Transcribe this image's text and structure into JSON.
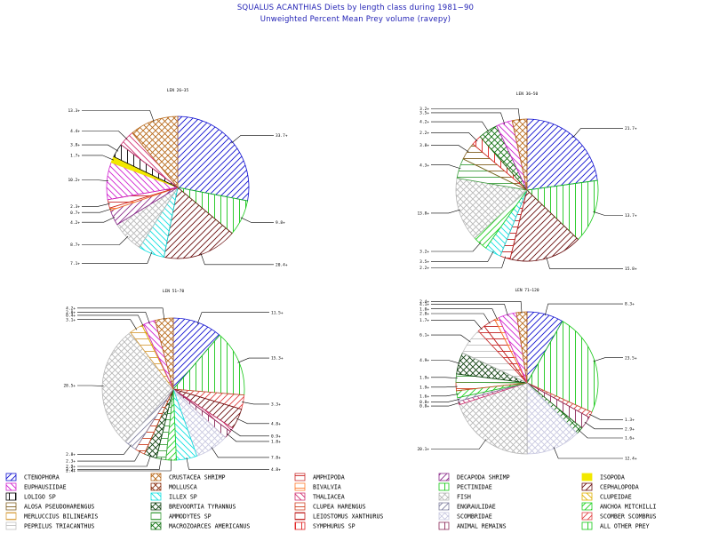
{
  "header": {
    "title": "SQUALUS ACANTHIAS Diets by length class during 1981−90",
    "subtitle": "Unweighted Percent Mean Prey volume (ravepy)"
  },
  "colors": {
    "title": "#1f1fb4",
    "ink": "#000000"
  },
  "categories": [
    {
      "name": "CTENOPHORA",
      "color": "#1010d0",
      "hatch": "fwd"
    },
    {
      "name": "CRUSTACEA SHRIMP",
      "color": "#b86a1c",
      "hatch": "cross"
    },
    {
      "name": "AMPHIPODA",
      "color": "#cc2a2a",
      "hatch": "horiz"
    },
    {
      "name": "DECAPODA SHRIMP",
      "color": "#8a2a8a",
      "hatch": "fwd"
    },
    {
      "name": "ISOPODA",
      "color": "#f2e800",
      "hatch": "solid"
    },
    {
      "name": "EUPHAUSIIDAE",
      "color": "#d020d0",
      "hatch": "back"
    },
    {
      "name": "MOLLUSCA",
      "color": "#8a3010",
      "hatch": "cross"
    },
    {
      "name": "BIVALVIA",
      "color": "#ff7a2a",
      "hatch": "horiz"
    },
    {
      "name": "PECTINIDAE",
      "color": "#18c818",
      "hatch": "vert"
    },
    {
      "name": "CEPHALOPODA",
      "color": "#6a1010",
      "hatch": "fwd"
    },
    {
      "name": "LOLIGO SP",
      "color": "#000000",
      "hatch": "vert"
    },
    {
      "name": "ILLEX SP",
      "color": "#10e0e0",
      "hatch": "back"
    },
    {
      "name": "THALIACEA",
      "color": "#d03070",
      "hatch": "back"
    },
    {
      "name": "FISH",
      "color": "#b8b8b8",
      "hatch": "cross"
    },
    {
      "name": "CLUPEIDAE",
      "color": "#e0b000",
      "hatch": "back"
    },
    {
      "name": "ALOSA PSEUDOHARENGUS",
      "color": "#806020",
      "hatch": "horiz"
    },
    {
      "name": "BREVOORTIA TYRANNUS",
      "color": "#104010",
      "hatch": "cross"
    },
    {
      "name": "CLUPEA HARENGUS",
      "color": "#d04020",
      "hatch": "horiz"
    },
    {
      "name": "ENGRAULIDAE",
      "color": "#8080a0",
      "hatch": "fwd"
    },
    {
      "name": "ANCHOA MITCHILLI",
      "color": "#20d020",
      "hatch": "fwd"
    },
    {
      "name": "MERLUCCIUS BILINEARIS",
      "color": "#d8a040",
      "hatch": "horiz"
    },
    {
      "name": "AMMODYTES SP",
      "color": "#40a040",
      "hatch": "horiz"
    },
    {
      "name": "LEIOSTOMUS XANTHURUS",
      "color": "#c02020",
      "hatch": "horiz"
    },
    {
      "name": "SCOMBRIDAE",
      "color": "#c8c8e0",
      "hatch": "cross"
    },
    {
      "name": "SCOMBER SCOMBRUS",
      "color": "#e04040",
      "hatch": "fwd"
    },
    {
      "name": "PEPRILUS TRIACANTHUS",
      "color": "#c0c0c0",
      "hatch": "horiz"
    },
    {
      "name": "MACROZOARCES AMERICANUS",
      "color": "#107010",
      "hatch": "cross"
    },
    {
      "name": "SYMPHURUS SP",
      "color": "#e02020",
      "hatch": "vert"
    },
    {
      "name": "ANIMAL REMAINS",
      "color": "#8a2a5a",
      "hatch": "vert"
    },
    {
      "name": "ALL OTHER PREY",
      "color": "#18c818",
      "hatch": "vert"
    }
  ],
  "chart_data": [
    {
      "type": "pie",
      "title": "LEN 26−35",
      "slices": [
        {
          "cat": 0,
          "value": 33.7,
          "label": "33.7+"
        },
        {
          "cat": 8,
          "value": 9.8,
          "label": "9.8+"
        },
        {
          "cat": 9,
          "value": 20.4,
          "label": "20.4+"
        },
        {
          "cat": 11,
          "value": 7.1,
          "label": "7.1+"
        },
        {
          "cat": 13,
          "value": 8.7,
          "label": "8.7+"
        },
        {
          "cat": 3,
          "value": 4.2,
          "label": "4.2+"
        },
        {
          "cat": 7,
          "value": 0.7,
          "label": "0.7+"
        },
        {
          "cat": 2,
          "value": 2.3,
          "label": "2.3+"
        },
        {
          "cat": 5,
          "value": 10.2,
          "label": "10.2+"
        },
        {
          "cat": 4,
          "value": 1.7,
          "label": "1.7+"
        },
        {
          "cat": 10,
          "value": 3.8,
          "label": "3.8+"
        },
        {
          "cat": 12,
          "value": 4.4,
          "label": "4.4+"
        },
        {
          "cat": 1,
          "value": 13.3,
          "label": "13.3+"
        }
      ]
    },
    {
      "type": "pie",
      "title": "LEN 36−50",
      "slices": [
        {
          "cat": 0,
          "value": 21.7,
          "label": "21.7+"
        },
        {
          "cat": 8,
          "value": 13.7,
          "label": "13.7+"
        },
        {
          "cat": 9,
          "value": 15.8,
          "label": "15.8+"
        },
        {
          "cat": 22,
          "value": 2.2,
          "label": "2.2+"
        },
        {
          "cat": 11,
          "value": 3.5,
          "label": "3.5+"
        },
        {
          "cat": 19,
          "value": 3.2,
          "label": "3.2+"
        },
        {
          "cat": 13,
          "value": 13.8,
          "label": "13.8+"
        },
        {
          "cat": 21,
          "value": 4.3,
          "label": "4.3+"
        },
        {
          "cat": 15,
          "value": 3.8,
          "label": "3.8+"
        },
        {
          "cat": 27,
          "value": 2.2,
          "label": "2.2+"
        },
        {
          "cat": 26,
          "value": 4.2,
          "label": "4.2+"
        },
        {
          "cat": 5,
          "value": 3.5,
          "label": "3.5+"
        },
        {
          "cat": 1,
          "value": 3.2,
          "label": "3.2+"
        }
      ]
    },
    {
      "type": "pie",
      "title": "LEN 51−70",
      "slices": [
        {
          "cat": 0,
          "value": 11.5,
          "label": "11.5+"
        },
        {
          "cat": 8,
          "value": 15.3,
          "label": "15.3+"
        },
        {
          "cat": 24,
          "value": 3.3,
          "label": "3.3+"
        },
        {
          "cat": 9,
          "value": 4.8,
          "label": "4.8+"
        },
        {
          "cat": 12,
          "value": 0.9,
          "label": "0.9+"
        },
        {
          "cat": 28,
          "value": 1.8,
          "label": "1.8+"
        },
        {
          "cat": 23,
          "value": 7.8,
          "label": "7.8+"
        },
        {
          "cat": 11,
          "value": 4.8,
          "label": "4.8+"
        },
        {
          "cat": 19,
          "value": 2.4,
          "label": "2.4+"
        },
        {
          "cat": 21,
          "value": 2.2,
          "label": "2.2+"
        },
        {
          "cat": 16,
          "value": 2.9,
          "label": "2.9+"
        },
        {
          "cat": 17,
          "value": 2.3,
          "label": "2.3+"
        },
        {
          "cat": 18,
          "value": 2.8,
          "label": "2.8+"
        },
        {
          "cat": 13,
          "value": 28.5,
          "label": "28.5+"
        },
        {
          "cat": 20,
          "value": 3.1,
          "label": "3.1+"
        },
        {
          "cat": 14,
          "value": 0.4,
          "label": "0.4+"
        },
        {
          "cat": 5,
          "value": 2.8,
          "label": "2.8+"
        },
        {
          "cat": 1,
          "value": 4.2,
          "label": "4.2+"
        }
      ]
    },
    {
      "type": "pie",
      "title": "LEN 71−120",
      "slices": [
        {
          "cat": 0,
          "value": 8.3,
          "label": "8.3+"
        },
        {
          "cat": 8,
          "value": 23.5,
          "label": "23.5+"
        },
        {
          "cat": 24,
          "value": 1.3,
          "label": "1.3+"
        },
        {
          "cat": 28,
          "value": 2.9,
          "label": "2.9+"
        },
        {
          "cat": 26,
          "value": 1.6,
          "label": "1.6+"
        },
        {
          "cat": 23,
          "value": 12.4,
          "label": "12.4+"
        },
        {
          "cat": 13,
          "value": 20.1,
          "label": "20.1+"
        },
        {
          "cat": 12,
          "value": 0.8,
          "label": "0.8+"
        },
        {
          "cat": 18,
          "value": 0.8,
          "label": "0.8+"
        },
        {
          "cat": 19,
          "value": 1.6,
          "label": "1.6+"
        },
        {
          "cat": 17,
          "value": 1.9,
          "label": "1.9+"
        },
        {
          "cat": 21,
          "value": 1.9,
          "label": "1.9+"
        },
        {
          "cat": 16,
          "value": 4.9,
          "label": "4.9+"
        },
        {
          "cat": 25,
          "value": 6.1,
          "label": "6.1+"
        },
        {
          "cat": 2,
          "value": 1.7,
          "label": "1.7+"
        },
        {
          "cat": 22,
          "value": 2.8,
          "label": "2.8+"
        },
        {
          "cat": 7,
          "value": 1.0,
          "label": "1.0+"
        },
        {
          "cat": 5,
          "value": 4.1,
          "label": "4.1+"
        },
        {
          "cat": 1,
          "value": 2.4,
          "label": "2.4+"
        }
      ]
    }
  ]
}
